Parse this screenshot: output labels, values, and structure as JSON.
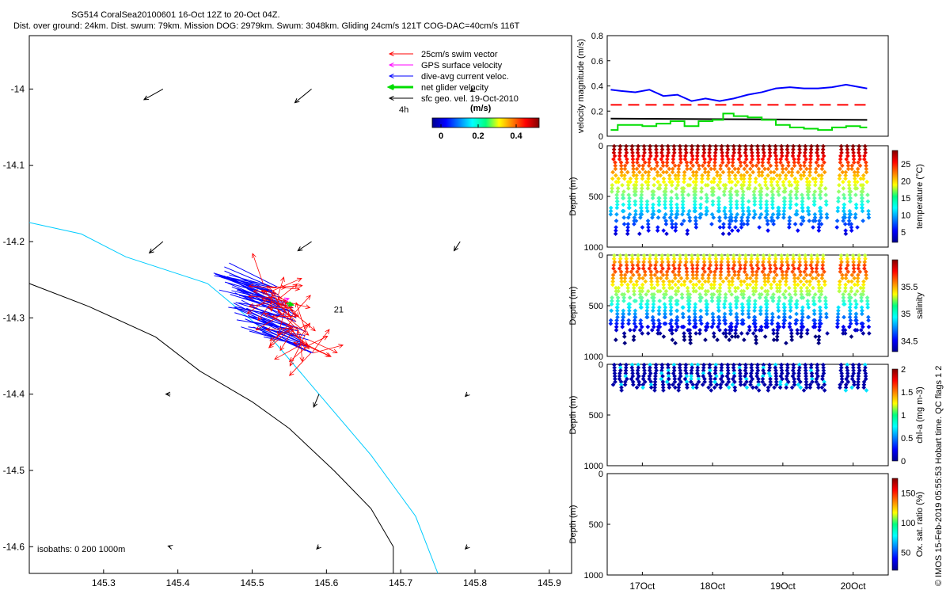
{
  "title": {
    "line1": "SG514 CoralSea20100601 16-Oct 12Z to 20-Oct 04Z.",
    "line2": "Dist. over ground: 24km. Dist. swum: 79km. Mission DOG: 2979km. Swum: 3048km. Gliding 24cm/s 121T COG-DAC=40cm/s 116T"
  },
  "credit": "© IMOS 15-Feb-2019 05:55:53 Hobart time. QC flags 1  2",
  "colors": {
    "swim": "#ff0000",
    "gps": "#ff00ff",
    "dac": "#0000ff",
    "net": "#00dd00",
    "sfc": "#000000",
    "iso0": "#000000",
    "iso200": "#00ccff",
    "threshold": "#ff0000"
  },
  "map": {
    "xlim": [
      145.2,
      145.93
    ],
    "ylim": [
      -14.635,
      -13.93
    ],
    "xticks": [
      "145.3",
      "145.4",
      "145.5",
      "145.6",
      "145.7",
      "145.8",
      "145.9"
    ],
    "yticks": [
      "-14",
      "-14.1",
      "-14.2",
      "-14.3",
      "-14.4",
      "-14.5",
      "-14.6"
    ],
    "legend": [
      {
        "label": "25cm/s swim vector",
        "key": "swim"
      },
      {
        "label": "GPS surface velocity",
        "key": "gps"
      },
      {
        "label": "dive-avg current veloc.",
        "key": "dac"
      },
      {
        "label": "net glider velocity",
        "key": "net"
      },
      {
        "label": "sfc geo. vel. 19-Oct-2010",
        "key": "sfc"
      }
    ],
    "timestep_label": "4h",
    "end_label": "21",
    "colorbar": {
      "label": "(m/s)",
      "ticks": [
        "0",
        "0.2",
        "0.4"
      ]
    },
    "isobath_label": "isobaths: 0   200  1000m",
    "isobath_0": [
      [
        145.2,
        -14.255
      ],
      [
        145.28,
        -14.285
      ],
      [
        145.37,
        -14.325
      ],
      [
        145.43,
        -14.37
      ],
      [
        145.5,
        -14.41
      ],
      [
        145.55,
        -14.445
      ],
      [
        145.61,
        -14.5
      ],
      [
        145.66,
        -14.55
      ],
      [
        145.69,
        -14.6
      ],
      [
        145.69,
        -14.635
      ]
    ],
    "isobath_200": [
      [
        145.2,
        -14.175
      ],
      [
        145.27,
        -14.19
      ],
      [
        145.33,
        -14.22
      ],
      [
        145.44,
        -14.255
      ],
      [
        145.52,
        -14.32
      ],
      [
        145.59,
        -14.4
      ],
      [
        145.66,
        -14.48
      ],
      [
        145.72,
        -14.56
      ],
      [
        145.75,
        -14.635
      ]
    ],
    "sfc_arrows": [
      {
        "lon": 145.38,
        "lat": -14.0,
        "u": -0.25,
        "v": -0.14
      },
      {
        "lon": 145.58,
        "lat": -14.0,
        "u": -0.22,
        "v": -0.18
      },
      {
        "lon": 145.38,
        "lat": -14.2,
        "u": -0.18,
        "v": -0.15
      },
      {
        "lon": 145.58,
        "lat": -14.2,
        "u": -0.18,
        "v": -0.12
      },
      {
        "lon": 145.78,
        "lat": -14.2,
        "u": -0.08,
        "v": -0.12
      },
      {
        "lon": 145.8,
        "lat": -14.0,
        "u": -0.06,
        "v": -0.03
      },
      {
        "lon": 145.39,
        "lat": -14.4,
        "u": -0.06,
        "v": 0.0
      },
      {
        "lon": 145.59,
        "lat": -14.4,
        "u": -0.07,
        "v": -0.17
      },
      {
        "lon": 145.79,
        "lat": -14.4,
        "u": -0.03,
        "v": -0.03
      },
      {
        "lon": 145.39,
        "lat": -14.6,
        "u": -0.03,
        "v": 0.01
      },
      {
        "lon": 145.59,
        "lat": -14.6,
        "u": -0.03,
        "v": -0.03
      },
      {
        "lon": 145.79,
        "lat": -14.6,
        "u": -0.03,
        "v": -0.03
      }
    ]
  },
  "chart_data": [
    {
      "type": "line",
      "ylabel": "velocity magnitude (m/s)",
      "ylim": [
        0,
        0.8
      ],
      "yticks": [
        "0",
        "0.2",
        "0.4",
        "0.6",
        "0.8"
      ],
      "xlim": [
        16.5,
        20.5
      ],
      "series": [
        {
          "key": "dac",
          "x": [
            16.55,
            16.7,
            16.9,
            17.1,
            17.3,
            17.5,
            17.7,
            17.9,
            18.1,
            18.3,
            18.5,
            18.7,
            18.9,
            19.1,
            19.3,
            19.5,
            19.7,
            19.9,
            20.1,
            20.2
          ],
          "values": [
            0.37,
            0.36,
            0.35,
            0.37,
            0.32,
            0.33,
            0.28,
            0.3,
            0.28,
            0.3,
            0.33,
            0.35,
            0.38,
            0.39,
            0.38,
            0.38,
            0.39,
            0.41,
            0.39,
            0.38
          ]
        },
        {
          "key": "threshold",
          "x": [
            16.55,
            20.2
          ],
          "values": [
            0.25,
            0.25
          ],
          "dashed": true
        },
        {
          "key": "sfc",
          "x": [
            16.55,
            20.2
          ],
          "values": [
            0.14,
            0.13
          ]
        },
        {
          "key": "net",
          "x": [
            16.55,
            16.65,
            16.8,
            17.0,
            17.2,
            17.4,
            17.6,
            17.8,
            18.0,
            18.15,
            18.3,
            18.5,
            18.7,
            18.9,
            19.1,
            19.3,
            19.5,
            19.7,
            19.9,
            20.1,
            20.2
          ],
          "values": [
            0.05,
            0.09,
            0.09,
            0.08,
            0.1,
            0.12,
            0.08,
            0.12,
            0.13,
            0.18,
            0.16,
            0.15,
            0.13,
            0.09,
            0.07,
            0.06,
            0.05,
            0.07,
            0.08,
            0.07,
            0.07
          ]
        }
      ]
    },
    {
      "type": "scatter",
      "variable": "temperature",
      "ylabel": "Depth (m)",
      "ylim": [
        1000,
        0
      ],
      "yticks": [
        "0",
        "500",
        "1000"
      ],
      "cbar_label": "temperature (°C)",
      "cbar_ticks": [
        "5",
        "10",
        "15",
        "20",
        "25"
      ],
      "clim": [
        2,
        29
      ],
      "max_depth": 900
    },
    {
      "type": "scatter",
      "variable": "salinity",
      "ylabel": "Depth (m)",
      "ylim": [
        1000,
        0
      ],
      "yticks": [
        "0",
        "500",
        "1000"
      ],
      "cbar_label": "salinity",
      "cbar_ticks": [
        "34.5",
        "35",
        "35.5"
      ],
      "clim": [
        34.3,
        36.0
      ],
      "max_depth": 900
    },
    {
      "type": "scatter",
      "variable": "chl-a",
      "ylabel": "Depth (m)",
      "ylim": [
        1000,
        0
      ],
      "yticks": [
        "0",
        "500",
        "1000"
      ],
      "cbar_label": "chl-a (mg m-3)",
      "cbar_ticks": [
        "0",
        "0.5",
        "1",
        "1.5",
        "2"
      ],
      "clim": [
        0,
        2
      ],
      "max_depth": 280
    },
    {
      "type": "scatter",
      "variable": "oxygen",
      "ylabel": "Depth (m)",
      "ylim": [
        1000,
        0
      ],
      "yticks": [
        "0",
        "500",
        "1000"
      ],
      "cbar_label": "Ox. sat. ratio (%)",
      "cbar_ticks": [
        "50",
        "100",
        "150"
      ],
      "clim": [
        20,
        175
      ],
      "max_depth": 0
    }
  ],
  "time_axis": {
    "ticks": [
      {
        "label": "17Oct",
        "day": 17
      },
      {
        "label": "18Oct",
        "day": 18
      },
      {
        "label": "19Oct",
        "day": 19
      },
      {
        "label": "20Oct",
        "day": 20
      }
    ]
  }
}
